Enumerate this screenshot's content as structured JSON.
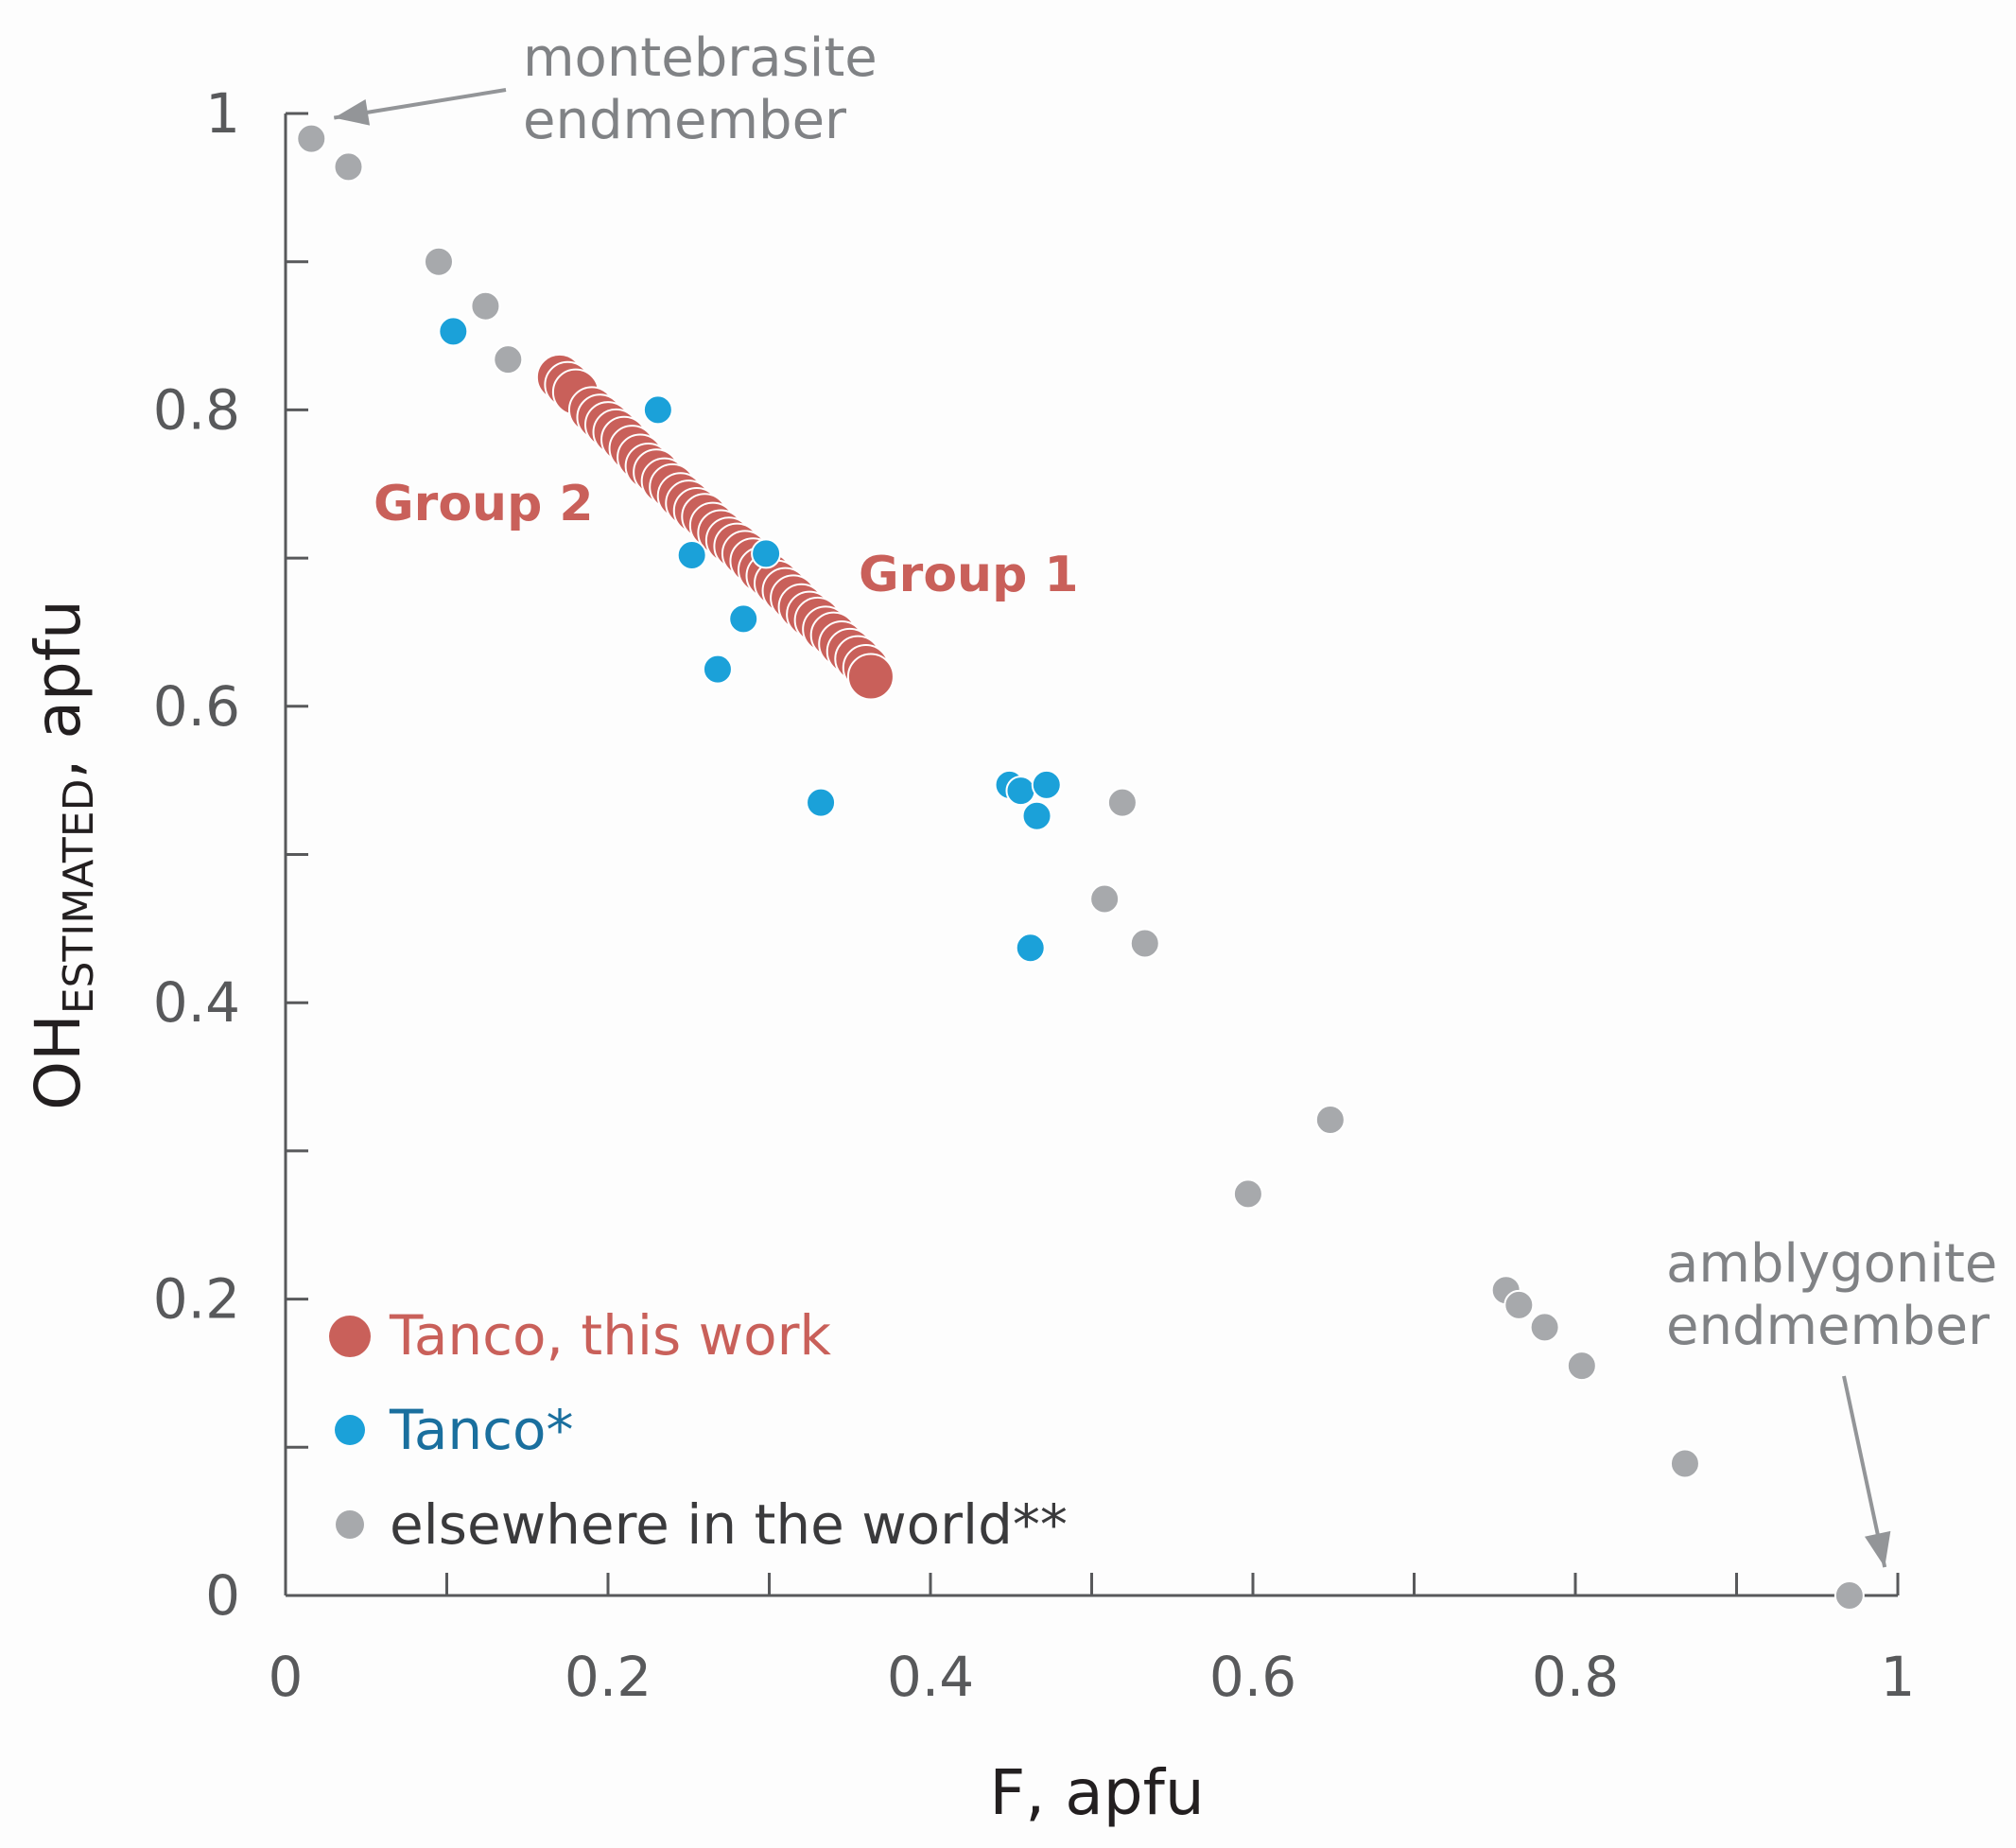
{
  "chart_data": {
    "type": "scatter",
    "xlabel": "F, apfu",
    "ylabel_main": "OH",
    "ylabel_sub": "ESTIMATED",
    "ylabel_suffix": ", apfu",
    "xlim": [
      0,
      1
    ],
    "ylim": [
      0,
      1
    ],
    "x_major_ticks": [
      0,
      0.2,
      0.4,
      0.6,
      0.8,
      1
    ],
    "x_tick_labels": [
      "0",
      "0.2",
      "0.4",
      "0.6",
      "0.8",
      "1"
    ],
    "x_minor_ticks": [
      0.1,
      0.3,
      0.5,
      0.7,
      0.9
    ],
    "y_major_ticks": [
      0,
      0.2,
      0.4,
      0.6,
      0.8,
      1
    ],
    "y_tick_labels": [
      "0",
      "0.2",
      "0.4",
      "0.6",
      "0.8",
      "1"
    ],
    "y_minor_ticks": [
      0.1,
      0.3,
      0.5,
      0.7,
      0.9
    ],
    "series": [
      {
        "name": "Tanco, this work",
        "color": "#c9605a",
        "points": [
          [
            0.17,
            0.822
          ],
          [
            0.175,
            0.817
          ],
          [
            0.18,
            0.812
          ],
          [
            0.19,
            0.8
          ],
          [
            0.195,
            0.795
          ],
          [
            0.2,
            0.79
          ],
          [
            0.205,
            0.785
          ],
          [
            0.21,
            0.78
          ],
          [
            0.215,
            0.774
          ],
          [
            0.22,
            0.768
          ],
          [
            0.225,
            0.762
          ],
          [
            0.23,
            0.758
          ],
          [
            0.235,
            0.752
          ],
          [
            0.24,
            0.748
          ],
          [
            0.245,
            0.742
          ],
          [
            0.25,
            0.737
          ],
          [
            0.255,
            0.732
          ],
          [
            0.26,
            0.728
          ],
          [
            0.265,
            0.722
          ],
          [
            0.27,
            0.717
          ],
          [
            0.275,
            0.712
          ],
          [
            0.28,
            0.708
          ],
          [
            0.285,
            0.703
          ],
          [
            0.29,
            0.698
          ],
          [
            0.295,
            0.692
          ],
          [
            0.3,
            0.688
          ],
          [
            0.305,
            0.683
          ],
          [
            0.31,
            0.678
          ],
          [
            0.315,
            0.673
          ],
          [
            0.32,
            0.667
          ],
          [
            0.325,
            0.662
          ],
          [
            0.33,
            0.658
          ],
          [
            0.335,
            0.652
          ],
          [
            0.34,
            0.648
          ],
          [
            0.345,
            0.642
          ],
          [
            0.35,
            0.637
          ],
          [
            0.355,
            0.632
          ],
          [
            0.36,
            0.626
          ],
          [
            0.363,
            0.62
          ]
        ]
      },
      {
        "name": "Tanco*",
        "color": "#1ba1d9",
        "points": [
          [
            0.104,
            0.853
          ],
          [
            0.231,
            0.8
          ],
          [
            0.252,
            0.702
          ],
          [
            0.298,
            0.703
          ],
          [
            0.284,
            0.659
          ],
          [
            0.268,
            0.625
          ],
          [
            0.332,
            0.535
          ],
          [
            0.449,
            0.547
          ],
          [
            0.456,
            0.543
          ],
          [
            0.466,
            0.526
          ],
          [
            0.472,
            0.547
          ],
          [
            0.462,
            0.437
          ]
        ]
      },
      {
        "name": "elsewhere in the world**",
        "color": "#a7a9ac",
        "points": [
          [
            0.016,
            0.983
          ],
          [
            0.039,
            0.964
          ],
          [
            0.095,
            0.9
          ],
          [
            0.124,
            0.87
          ],
          [
            0.138,
            0.834
          ],
          [
            0.519,
            0.535
          ],
          [
            0.508,
            0.47
          ],
          [
            0.533,
            0.44
          ],
          [
            0.648,
            0.321
          ],
          [
            0.597,
            0.271
          ],
          [
            0.757,
            0.206
          ],
          [
            0.765,
            0.196
          ],
          [
            0.781,
            0.181
          ],
          [
            0.804,
            0.155
          ],
          [
            0.868,
            0.089
          ],
          [
            0.97,
            0.0
          ]
        ]
      }
    ],
    "annotations": [
      {
        "lines": [
          "montebrasite",
          "endmember"
        ],
        "points_to": [
          0.016,
          0.999
        ]
      },
      {
        "lines": [
          "amblygonite",
          "endmember"
        ],
        "points_to": [
          0.996,
          0.014
        ]
      }
    ],
    "group_labels": [
      {
        "text": "Group 2",
        "color": "#c9605a"
      },
      {
        "text": "Group 1",
        "color": "#c9605a"
      }
    ],
    "legend": {
      "position": "bottom-left",
      "entries": [
        {
          "label": "Tanco, this work",
          "color": "#c9605a",
          "text_color": "#c9605a"
        },
        {
          "label": "Tanco*",
          "color": "#1ba1d9",
          "text_color": "#1a6f9e"
        },
        {
          "label": "elsewhere in the world**",
          "color": "#a7a9ac",
          "text_color": "#3a3a3c"
        }
      ]
    }
  }
}
